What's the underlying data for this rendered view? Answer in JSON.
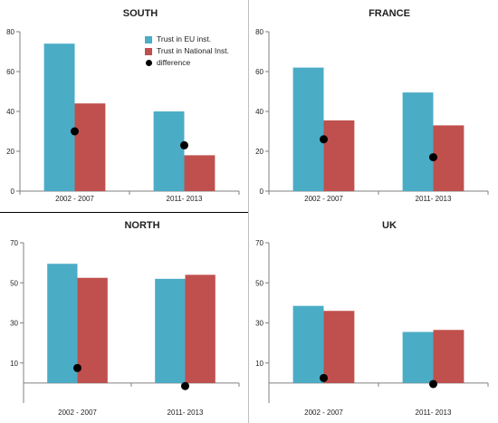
{
  "colors": {
    "eu": "#4bacc6",
    "national": "#c0504d",
    "difference": "#000000",
    "axis": "#808080",
    "text": "#1f1f1f"
  },
  "legend": {
    "eu": "Trust in EU inst.",
    "national": "Trust in National Inst.",
    "difference": "difference"
  },
  "chart_data": [
    {
      "type": "bar",
      "title": "SOUTH",
      "categories": [
        "2002 - 2007",
        "2011- 2013"
      ],
      "ylim": [
        0,
        80
      ],
      "yticks": [
        0,
        20,
        40,
        60,
        80
      ],
      "series": [
        {
          "name": "Trust in EU inst.",
          "values": [
            74,
            40
          ]
        },
        {
          "name": "Trust in National Inst.",
          "values": [
            44,
            18
          ]
        },
        {
          "name": "difference",
          "values": [
            30,
            23
          ]
        }
      ],
      "legend_position": "top-right"
    },
    {
      "type": "bar",
      "title": "FRANCE",
      "categories": [
        "2002 - 2007",
        "2011- 2013"
      ],
      "ylim": [
        0,
        80
      ],
      "yticks": [
        0,
        20,
        40,
        60,
        80
      ],
      "series": [
        {
          "name": "Trust in EU inst.",
          "values": [
            62,
            49.5
          ]
        },
        {
          "name": "Trust in National Inst.",
          "values": [
            35.5,
            33
          ]
        },
        {
          "name": "difference",
          "values": [
            26,
            17
          ]
        }
      ]
    },
    {
      "type": "bar",
      "title": "NORTH",
      "categories": [
        "2002 - 2007",
        "2011- 2013"
      ],
      "ylim": [
        -10,
        70
      ],
      "yticks": [
        10,
        30,
        50,
        70
      ],
      "series": [
        {
          "name": "Trust in EU inst.",
          "values": [
            59.5,
            52
          ]
        },
        {
          "name": "Trust in National Inst.",
          "values": [
            52.5,
            54
          ]
        },
        {
          "name": "difference",
          "values": [
            7.5,
            -1.5
          ]
        }
      ]
    },
    {
      "type": "bar",
      "title": "UK",
      "categories": [
        "2002 - 2007",
        "2011- 2013"
      ],
      "ylim": [
        -10,
        70
      ],
      "yticks": [
        10,
        30,
        50,
        70
      ],
      "series": [
        {
          "name": "Trust in EU inst.",
          "values": [
            38.5,
            25.5
          ]
        },
        {
          "name": "Trust in National Inst.",
          "values": [
            36,
            26.5
          ]
        },
        {
          "name": "difference",
          "values": [
            2.5,
            -0.5
          ]
        }
      ]
    }
  ]
}
